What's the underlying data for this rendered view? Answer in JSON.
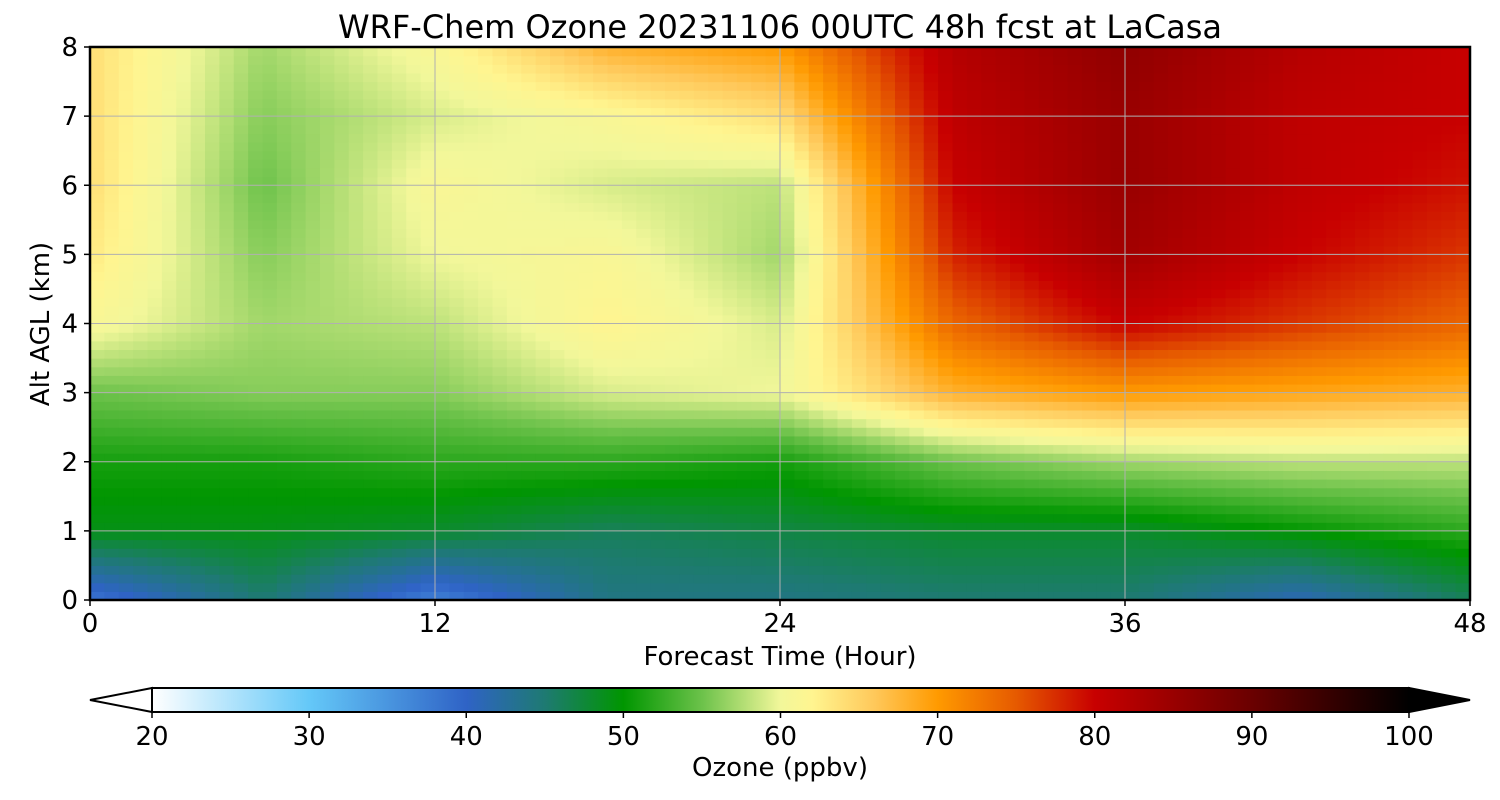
{
  "chart_data": {
    "type": "heatmap",
    "subtype": "filled-contour time-height cross section",
    "title": "WRF-Chem Ozone  20231106 00UTC 48h fcst at LaCasa",
    "xlabel": "Forecast Time (Hour)",
    "ylabel": "Alt AGL (km)",
    "xlim": [
      0,
      48
    ],
    "ylim": [
      0,
      8
    ],
    "xticks": [
      0,
      12,
      24,
      36,
      48
    ],
    "yticks": [
      0,
      1,
      2,
      3,
      4,
      5,
      6,
      7,
      8
    ],
    "grid": true,
    "colorbar": {
      "label": "Ozone  (ppbv)",
      "orientation": "horizontal",
      "placement": "bottom",
      "range": [
        20,
        100
      ],
      "ticks": [
        20,
        30,
        40,
        50,
        60,
        70,
        80,
        90,
        100
      ],
      "extend": "both",
      "stops": [
        {
          "value": 20,
          "color": "#ffffff"
        },
        {
          "value": 30,
          "color": "#64c8f8"
        },
        {
          "value": 40,
          "color": "#2f63c6"
        },
        {
          "value": 45,
          "color": "#1e7a72"
        },
        {
          "value": 50,
          "color": "#009600"
        },
        {
          "value": 55,
          "color": "#6cc24a"
        },
        {
          "value": 60,
          "color": "#f2f79a"
        },
        {
          "value": 62,
          "color": "#fff590"
        },
        {
          "value": 66,
          "color": "#ffc85a"
        },
        {
          "value": 70,
          "color": "#ff9a00"
        },
        {
          "value": 75,
          "color": "#e65a00"
        },
        {
          "value": 80,
          "color": "#c80000"
        },
        {
          "value": 90,
          "color": "#6a0000"
        },
        {
          "value": 100,
          "color": "#000000"
        }
      ]
    },
    "series": [
      {
        "hour": 0,
        "values_by_km": [
          38,
          49,
          51,
          55,
          61,
          63,
          64,
          64,
          64
        ]
      },
      {
        "hour": 6,
        "values_by_km": [
          45,
          49,
          51,
          56,
          57,
          56,
          55,
          56,
          57
        ]
      },
      {
        "hour": 12,
        "values_by_km": [
          37,
          48,
          52,
          56,
          58,
          60,
          61,
          59,
          61
        ]
      },
      {
        "hour": 18,
        "values_by_km": [
          44,
          46,
          52,
          59,
          62,
          61,
          59,
          61,
          68
        ]
      },
      {
        "hour": 24,
        "values_by_km": [
          44,
          47,
          51,
          60,
          59,
          57,
          58,
          64,
          70
        ]
      },
      {
        "hour": 30,
        "values_by_km": [
          45,
          48,
          55,
          68,
          74,
          78,
          80,
          81,
          82
        ]
      },
      {
        "hour": 36,
        "values_by_km": [
          45,
          48,
          57,
          70,
          80,
          84,
          85,
          85,
          86
        ]
      },
      {
        "hour": 42,
        "values_by_km": [
          41,
          50,
          58,
          69,
          77,
          80,
          81,
          81,
          82
        ]
      },
      {
        "hour": 48,
        "values_by_km": [
          46,
          52,
          58,
          68,
          74,
          77,
          79,
          80,
          80
        ]
      }
    ]
  }
}
